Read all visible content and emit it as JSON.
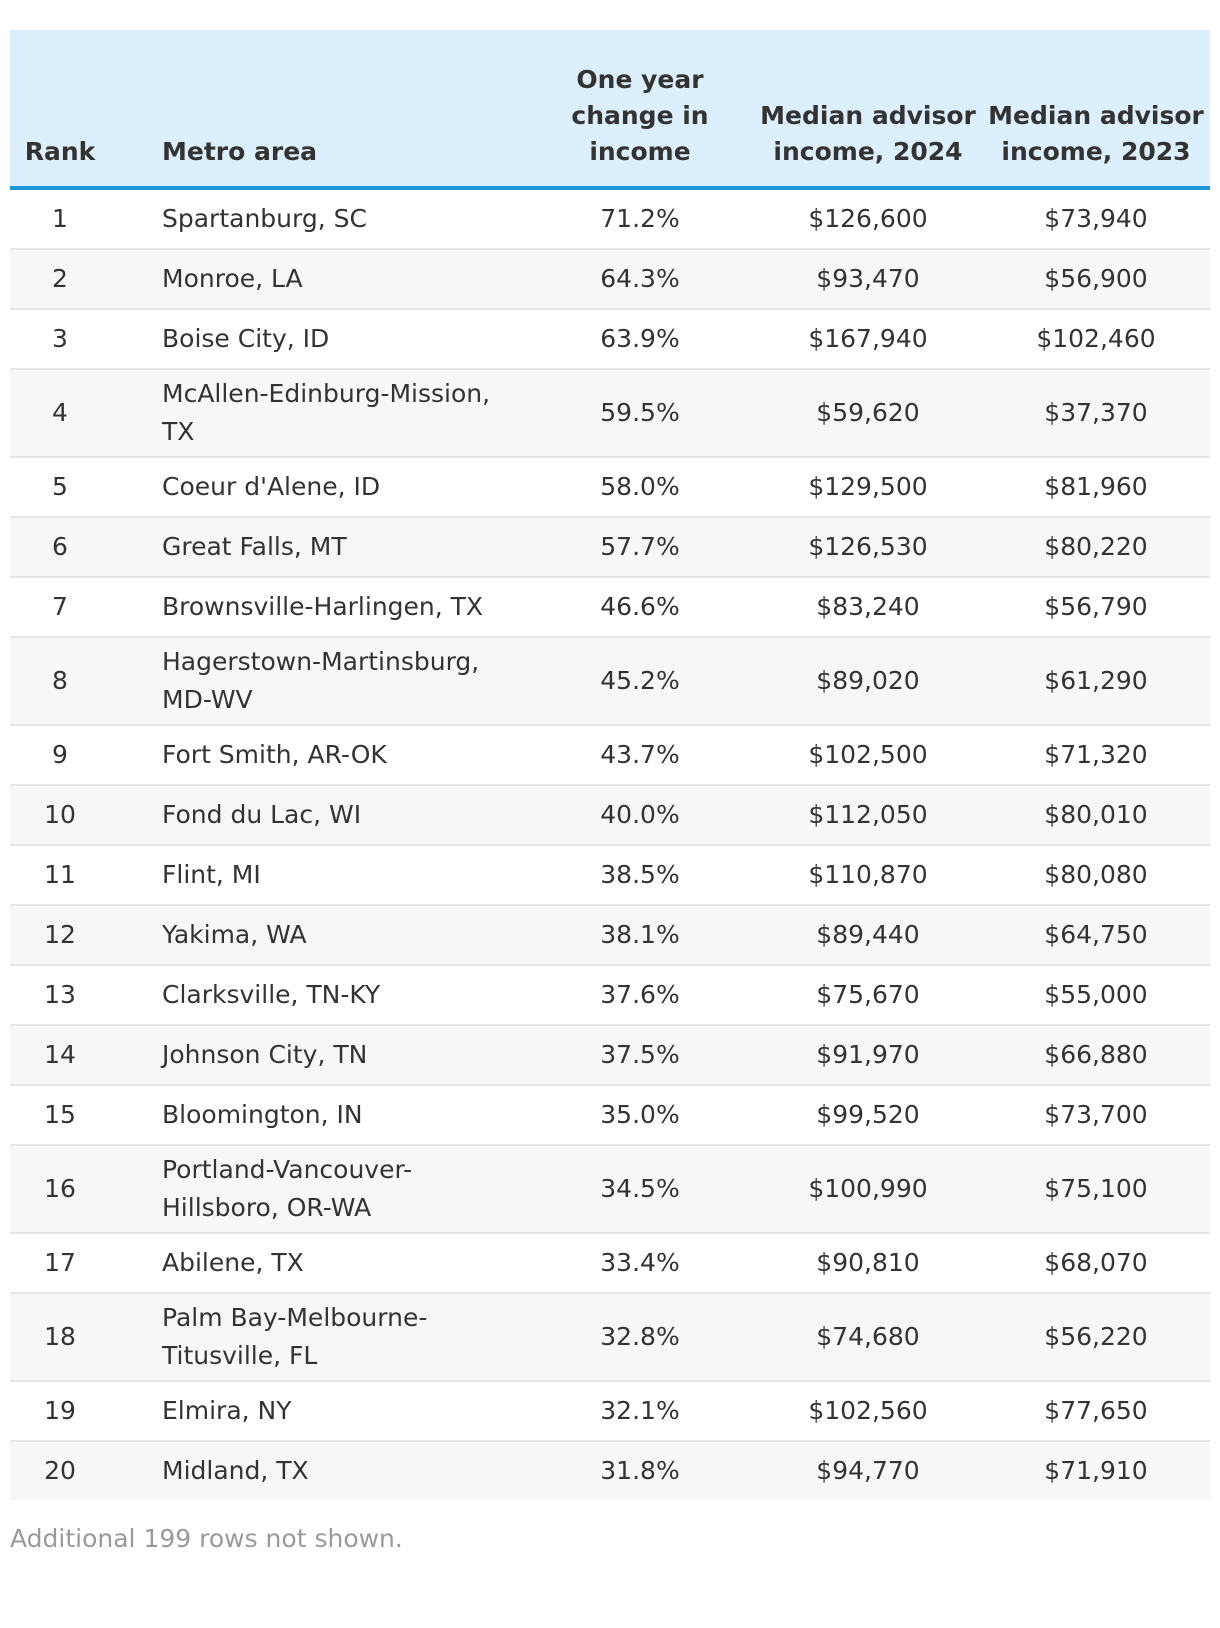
{
  "table": {
    "headers": {
      "rank": "Rank",
      "metro": "Metro area",
      "change": "One year change in income",
      "income_2024": "Median advisor income, 2024",
      "income_2023": "Median advisor income, 2023"
    },
    "rows": [
      {
        "rank": "1",
        "metro": "Spartanburg, SC",
        "change": "71.2%",
        "income_2024": "$126,600",
        "income_2023": "$73,940"
      },
      {
        "rank": "2",
        "metro": "Monroe, LA",
        "change": "64.3%",
        "income_2024": "$93,470",
        "income_2023": "$56,900"
      },
      {
        "rank": "3",
        "metro": "Boise City, ID",
        "change": "63.9%",
        "income_2024": "$167,940",
        "income_2023": "$102,460"
      },
      {
        "rank": "4",
        "metro": "McAllen-Edinburg-Mission, TX",
        "change": "59.5%",
        "income_2024": "$59,620",
        "income_2023": "$37,370"
      },
      {
        "rank": "5",
        "metro": "Coeur d'Alene, ID",
        "change": "58.0%",
        "income_2024": "$129,500",
        "income_2023": "$81,960"
      },
      {
        "rank": "6",
        "metro": "Great Falls, MT",
        "change": "57.7%",
        "income_2024": "$126,530",
        "income_2023": "$80,220"
      },
      {
        "rank": "7",
        "metro": "Brownsville-Harlingen, TX",
        "change": "46.6%",
        "income_2024": "$83,240",
        "income_2023": "$56,790"
      },
      {
        "rank": "8",
        "metro": "Hagerstown-Martinsburg, MD-WV",
        "change": "45.2%",
        "income_2024": "$89,020",
        "income_2023": "$61,290"
      },
      {
        "rank": "9",
        "metro": "Fort Smith, AR-OK",
        "change": "43.7%",
        "income_2024": "$102,500",
        "income_2023": "$71,320"
      },
      {
        "rank": "10",
        "metro": "Fond du Lac, WI",
        "change": "40.0%",
        "income_2024": "$112,050",
        "income_2023": "$80,010"
      },
      {
        "rank": "11",
        "metro": "Flint, MI",
        "change": "38.5%",
        "income_2024": "$110,870",
        "income_2023": "$80,080"
      },
      {
        "rank": "12",
        "metro": "Yakima, WA",
        "change": "38.1%",
        "income_2024": "$89,440",
        "income_2023": "$64,750"
      },
      {
        "rank": "13",
        "metro": "Clarksville, TN-KY",
        "change": "37.6%",
        "income_2024": "$75,670",
        "income_2023": "$55,000"
      },
      {
        "rank": "14",
        "metro": "Johnson City, TN",
        "change": "37.5%",
        "income_2024": "$91,970",
        "income_2023": "$66,880"
      },
      {
        "rank": "15",
        "metro": "Bloomington, IN",
        "change": "35.0%",
        "income_2024": "$99,520",
        "income_2023": "$73,700"
      },
      {
        "rank": "16",
        "metro": "Portland-Vancouver-Hillsboro, OR-WA",
        "change": "34.5%",
        "income_2024": "$100,990",
        "income_2023": "$75,100"
      },
      {
        "rank": "17",
        "metro": "Abilene, TX",
        "change": "33.4%",
        "income_2024": "$90,810",
        "income_2023": "$68,070"
      },
      {
        "rank": "18",
        "metro": "Palm Bay-Melbourne-Titusville, FL",
        "change": "32.8%",
        "income_2024": "$74,680",
        "income_2023": "$56,220"
      },
      {
        "rank": "19",
        "metro": "Elmira, NY",
        "change": "32.1%",
        "income_2024": "$102,560",
        "income_2023": "$77,650"
      },
      {
        "rank": "20",
        "metro": "Midland, TX",
        "change": "31.8%",
        "income_2024": "$94,770",
        "income_2023": "$71,910"
      }
    ],
    "footnote": "Additional 199 rows not shown."
  },
  "colors": {
    "header_bg": "#dbeffc",
    "header_rule": "#1e96d8",
    "stripe": "#f7f7f7",
    "text": "#333333",
    "muted": "#9a9a9a"
  }
}
